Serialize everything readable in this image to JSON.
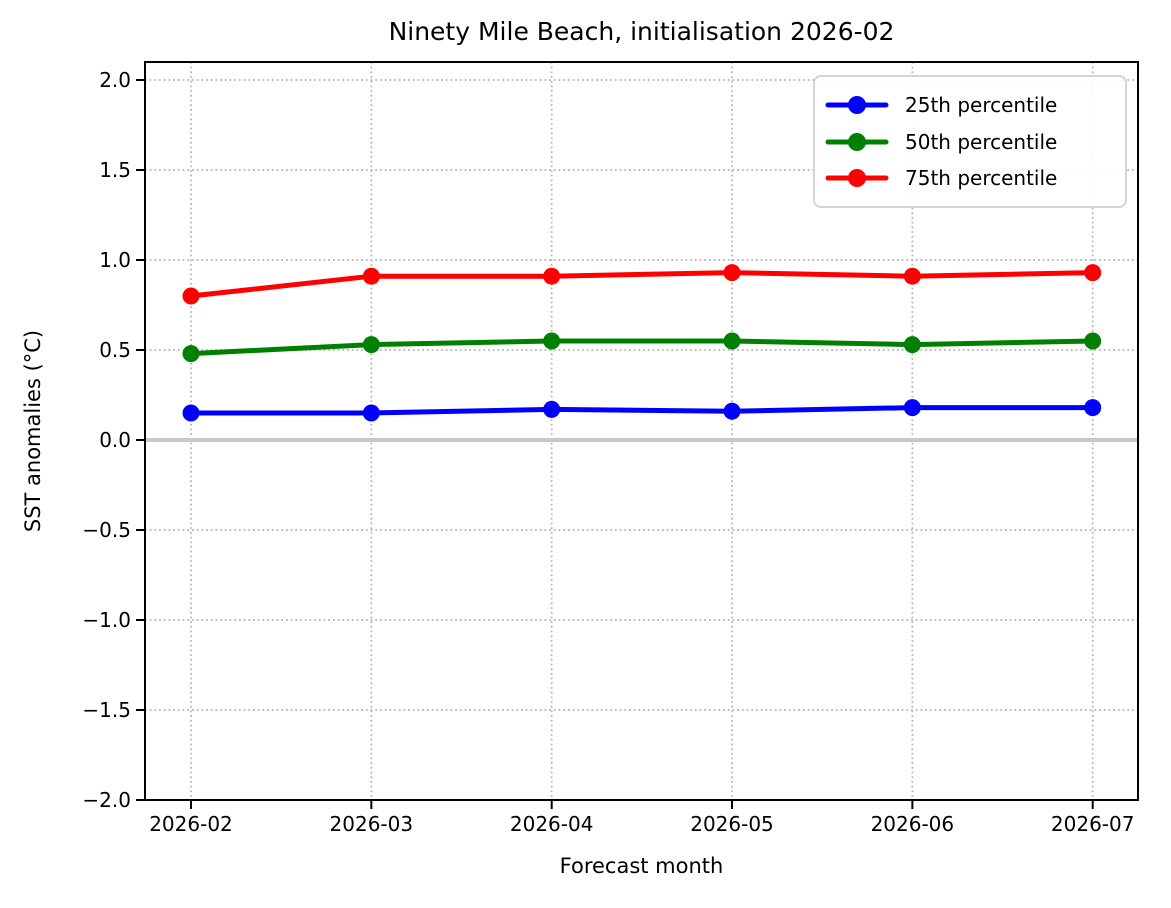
{
  "chart_data": {
    "type": "line",
    "title": "Ninety Mile Beach, initialisation 2026-02",
    "xlabel": "Forecast month",
    "ylabel": "SST anomalies (°C)",
    "categories": [
      "2026-02",
      "2026-03",
      "2026-04",
      "2026-05",
      "2026-06",
      "2026-07"
    ],
    "series": [
      {
        "name": "25th percentile",
        "color": "#0000ff",
        "values": [
          0.15,
          0.15,
          0.17,
          0.16,
          0.18,
          0.18
        ]
      },
      {
        "name": "50th percentile",
        "color": "#008000",
        "values": [
          0.48,
          0.53,
          0.55,
          0.55,
          0.53,
          0.55
        ]
      },
      {
        "name": "75th percentile",
        "color": "#ff0000",
        "values": [
          0.8,
          0.91,
          0.91,
          0.93,
          0.91,
          0.93
        ]
      }
    ],
    "ylim": [
      -2.0,
      2.1
    ],
    "yticks": [
      2.0,
      1.5,
      1.0,
      0.5,
      0.0,
      -0.5,
      -1.0,
      -1.5,
      -2.0
    ],
    "ytick_labels": [
      "2.0",
      "1.5",
      "1.0",
      "0.5",
      "0.0",
      "−0.5",
      "−1.0",
      "−1.5",
      "−2.0"
    ],
    "grid": true,
    "marker": "o",
    "legend_position": "upper right",
    "zero_line": 0.0
  },
  "colors": {
    "background": "#ffffff",
    "axis": "#000000",
    "grid": "#b0b0b0",
    "zero_line": "#c8c8c8",
    "legend_border": "#d5d5d5",
    "text": "#000000"
  }
}
